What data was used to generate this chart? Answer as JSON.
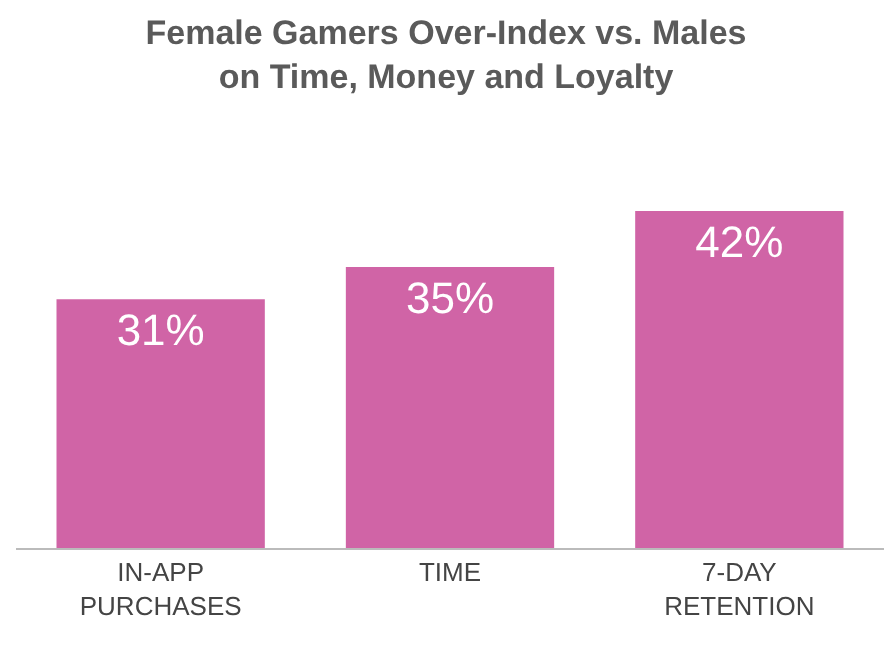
{
  "chart_data": {
    "type": "bar",
    "title": "Female Gamers Over-Index vs. Males\non Time, Money and Loyalty",
    "categories": [
      "IN-APP\nPURCHASES",
      "TIME",
      "7-DAY\nRETENTION"
    ],
    "values": [
      31,
      35,
      42
    ],
    "value_labels": [
      "31%",
      "35%",
      "42%"
    ],
    "color": "#d064a6"
  }
}
